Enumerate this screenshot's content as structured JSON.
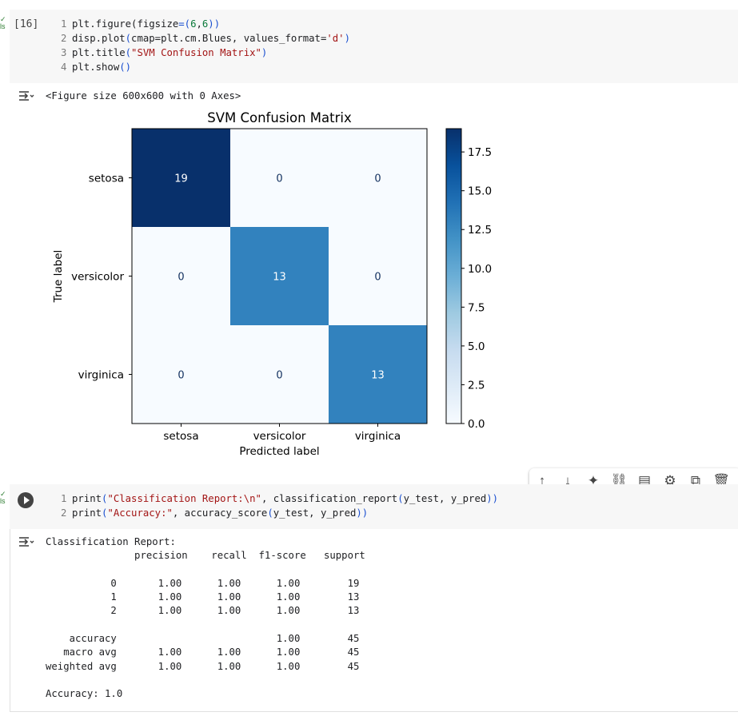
{
  "cell1": {
    "exec_count": "[16]",
    "lines": [
      {
        "num": "1",
        "segments": [
          {
            "t": "plt.figure(",
            "c": ""
          },
          {
            "t": "figsize",
            "c": ""
          },
          {
            "t": "=(",
            "c": "p"
          },
          {
            "t": "6",
            "c": "n"
          },
          {
            "t": ",",
            "c": ""
          },
          {
            "t": "6",
            "c": "n"
          },
          {
            "t": "))",
            "c": "p"
          }
        ]
      },
      {
        "num": "2",
        "segments": [
          {
            "t": "disp.plot",
            "c": ""
          },
          {
            "t": "(",
            "c": "p"
          },
          {
            "t": "cmap=plt.cm.Blues, values_format=",
            "c": ""
          },
          {
            "t": "'d'",
            "c": "s"
          },
          {
            "t": ")",
            "c": "p"
          }
        ]
      },
      {
        "num": "3",
        "segments": [
          {
            "t": "plt.title",
            "c": ""
          },
          {
            "t": "(",
            "c": "p"
          },
          {
            "t": "\"SVM Confusion Matrix\"",
            "c": "s"
          },
          {
            "t": ")",
            "c": "p"
          }
        ]
      },
      {
        "num": "4",
        "segments": [
          {
            "t": "plt.show",
            "c": ""
          },
          {
            "t": "()",
            "c": "p"
          }
        ]
      }
    ],
    "output_text": "<Figure size 600x600 with 0 Axes>"
  },
  "chart_data": {
    "type": "heatmap",
    "title": "SVM Confusion Matrix",
    "xlabel": "Predicted label",
    "ylabel": "True label",
    "x_categories": [
      "setosa",
      "versicolor",
      "virginica"
    ],
    "y_categories": [
      "setosa",
      "versicolor",
      "virginica"
    ],
    "values": [
      [
        19,
        0,
        0
      ],
      [
        0,
        13,
        0
      ],
      [
        0,
        0,
        13
      ]
    ],
    "colormap": "Blues",
    "colorbar_range": [
      0,
      19
    ],
    "colorbar_ticks": [
      "0.0",
      "2.5",
      "5.0",
      "7.5",
      "10.0",
      "12.5",
      "15.0",
      "17.5"
    ],
    "colorbar_tick_values": [
      0,
      2.5,
      5,
      7.5,
      10,
      12.5,
      15,
      17.5
    ],
    "colors": {
      "low": "#f7fbff",
      "mid": "#4a7fbb",
      "high": "#12305f"
    }
  },
  "toolbar": {
    "icons": [
      "arrow-up-icon",
      "arrow-down-icon",
      "sparkle-icon",
      "link-icon",
      "comment-icon",
      "gear-icon",
      "mirror-cell-icon",
      "trash-icon"
    ],
    "glyphs": [
      "↑",
      "↓",
      "✦",
      "⛓",
      "▤",
      "⚙",
      "⧉",
      "🗑"
    ]
  },
  "cell2": {
    "lines": [
      {
        "num": "1",
        "segments": [
          {
            "t": "print",
            "c": ""
          },
          {
            "t": "(",
            "c": "p"
          },
          {
            "t": "\"Classification Report:\\n\"",
            "c": "s"
          },
          {
            "t": ", classification_report",
            "c": ""
          },
          {
            "t": "(",
            "c": "p"
          },
          {
            "t": "y_test, y_pred",
            "c": ""
          },
          {
            "t": "))",
            "c": "p"
          }
        ]
      },
      {
        "num": "2",
        "segments": [
          {
            "t": "print",
            "c": ""
          },
          {
            "t": "(",
            "c": "p"
          },
          {
            "t": "\"Accuracy:\"",
            "c": "s"
          },
          {
            "t": ", accuracy_score",
            "c": ""
          },
          {
            "t": "(",
            "c": "p"
          },
          {
            "t": "y_test, y_pred",
            "c": ""
          },
          {
            "t": "))",
            "c": "p"
          }
        ]
      }
    ],
    "report": "Classification Report:\n               precision    recall  f1-score   support\n\n           0       1.00      1.00      1.00        19\n           1       1.00      1.00      1.00        13\n           2       1.00      1.00      1.00        13\n\n    accuracy                           1.00        45\n   macro avg       1.00      1.00      1.00        45\nweighted avg       1.00      1.00      1.00        45\n\nAccuracy: 1.0"
  }
}
